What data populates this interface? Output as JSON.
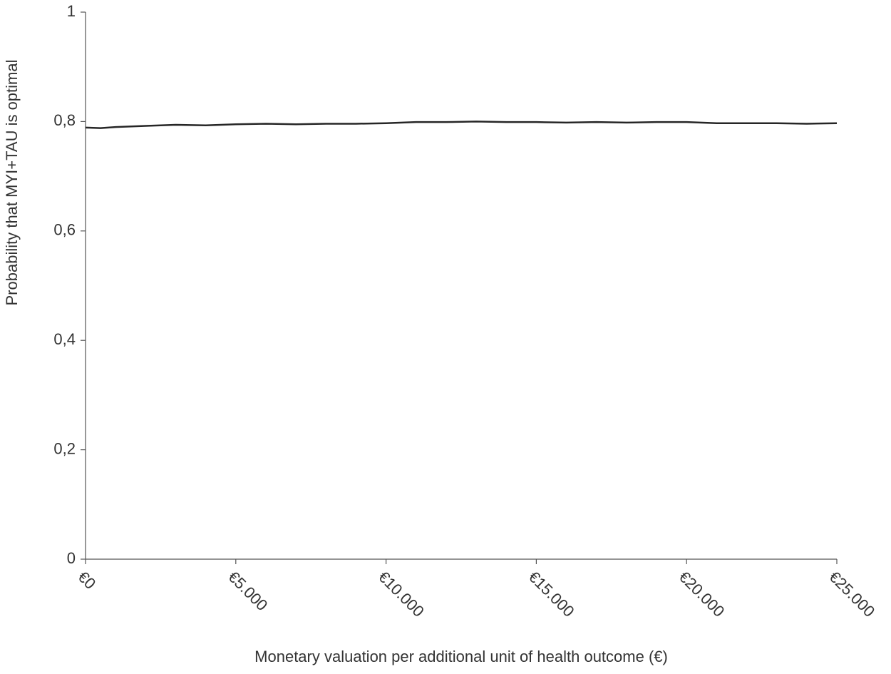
{
  "chart_data": {
    "type": "line",
    "ylabel": "Probability that MYI+TAU is optimal",
    "xlabel": "Monetary valuation per additional unit of health outcome (€)",
    "x": [
      0,
      500,
      1000,
      2000,
      3000,
      4000,
      5000,
      6000,
      7000,
      8000,
      9000,
      10000,
      11000,
      12000,
      13000,
      14000,
      15000,
      16000,
      17000,
      18000,
      19000,
      20000,
      21000,
      22000,
      23000,
      24000,
      25000
    ],
    "values": [
      0.789,
      0.788,
      0.79,
      0.792,
      0.794,
      0.793,
      0.795,
      0.796,
      0.795,
      0.796,
      0.796,
      0.797,
      0.799,
      0.799,
      0.8,
      0.799,
      0.799,
      0.798,
      0.799,
      0.798,
      0.799,
      0.799,
      0.797,
      0.797,
      0.797,
      0.796,
      0.797
    ],
    "color": "#262626",
    "xlim": [
      0,
      25000
    ],
    "xticks": [
      {
        "value": 0,
        "label": "€0"
      },
      {
        "value": 5000,
        "label": "€5.000"
      },
      {
        "value": 10000,
        "label": "€10.000"
      },
      {
        "value": 15000,
        "label": "€15.000"
      },
      {
        "value": 20000,
        "label": "€20.000"
      },
      {
        "value": 25000,
        "label": "€25.000"
      }
    ],
    "ylim": [
      0,
      1
    ],
    "yticks": [
      0,
      {
        "value": 0.2,
        "label": "0,2"
      },
      {
        "value": 0.4,
        "label": "0,4"
      },
      {
        "value": 0.6,
        "label": "0,6"
      },
      {
        "value": 0.8,
        "label": "0,8"
      },
      1
    ],
    "grid": false
  }
}
